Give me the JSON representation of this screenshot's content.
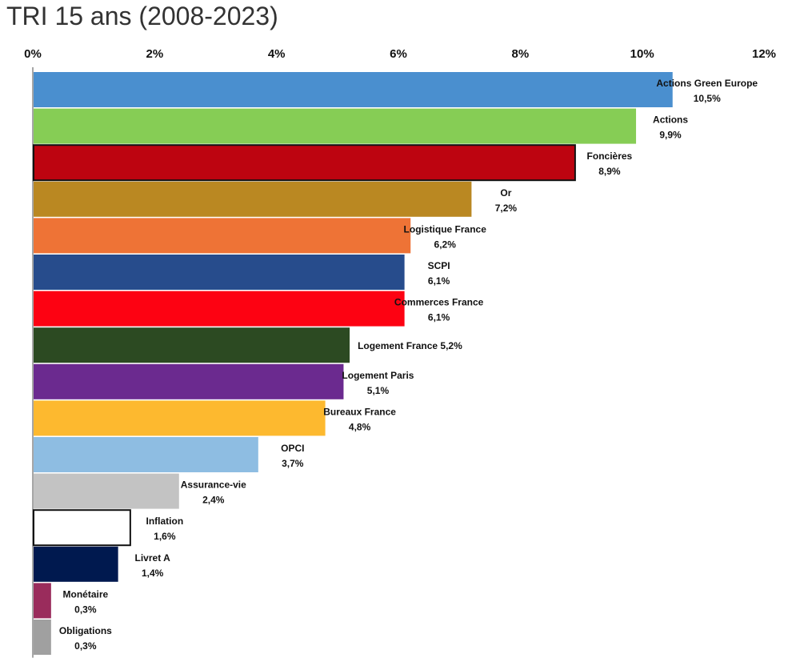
{
  "chart_data": {
    "type": "bar",
    "orientation": "horizontal",
    "title": "TRI 15 ans (2008-2023)",
    "xlabel": "",
    "ylabel": "",
    "xlim": [
      0,
      12
    ],
    "ticks": [
      "0%",
      "2%",
      "4%",
      "6%",
      "8%",
      "10%",
      "12%"
    ],
    "categories": [
      "Actions Green Europe",
      "Actions",
      "Foncières",
      "Or",
      "Logistique France",
      "SCPI",
      "Commerces France",
      "Logement France",
      "Logement Paris",
      "Bureaux France",
      "OPCI",
      "Assurance-vie",
      "Inflation",
      "Livret A",
      "Monétaire",
      "Obligations"
    ],
    "values": [
      10.5,
      9.9,
      8.9,
      7.2,
      6.2,
      6.1,
      6.1,
      5.2,
      5.1,
      4.8,
      3.7,
      2.4,
      1.6,
      1.4,
      0.3,
      0.3
    ],
    "value_labels": [
      "10,5%",
      "9,9%",
      "8,9%",
      "7,2%",
      "6,2%",
      "6,1%",
      "6,1%",
      "5,2%",
      "5,1%",
      "4,8%",
      "3,7%",
      "2,4%",
      "1,6%",
      "1,4%",
      "0,3%",
      "0,3%"
    ],
    "colors": [
      "#4a8fcf",
      "#86cd55",
      "#bd0410",
      "#ba8822",
      "#ee7336",
      "#274c8c",
      "#fd0212",
      "#2c4a22",
      "#6b2a8f",
      "#fdb92f",
      "#8ebde2",
      "#c3c3c3",
      "#ffffff",
      "#00194f",
      "#9a2c5c",
      "#a0a0a0"
    ],
    "outlined": [
      false,
      false,
      true,
      false,
      false,
      false,
      false,
      false,
      false,
      false,
      false,
      false,
      true,
      false,
      false,
      false
    ],
    "label_inline": [
      false,
      false,
      false,
      false,
      false,
      false,
      false,
      true,
      false,
      false,
      false,
      false,
      false,
      false,
      false,
      false
    ]
  }
}
